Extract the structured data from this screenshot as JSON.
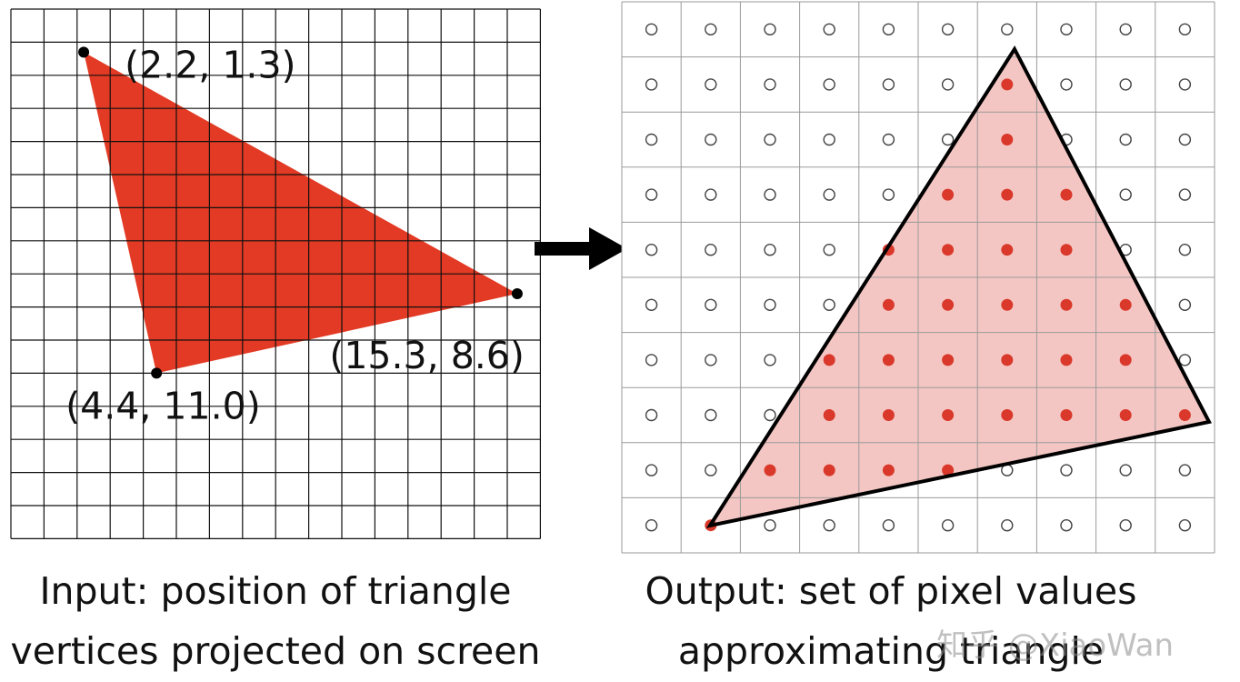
{
  "input_panel": {
    "grid_cols": 16,
    "grid_rows": 16,
    "triangle_color": "#e23a24",
    "vertices": [
      {
        "x": 2.2,
        "y": 1.3,
        "label": "(2.2, 1.3)"
      },
      {
        "x": 15.3,
        "y": 8.6,
        "label": "(15.3, 8.6)"
      },
      {
        "x": 4.4,
        "y": 11.0,
        "label": "(4.4, 11.0)"
      }
    ]
  },
  "arrow": {
    "direction": "right",
    "color": "#000000"
  },
  "output_panel": {
    "grid_cols": 10,
    "grid_rows": 10,
    "triangle_fill": "#f4c6c3",
    "filled_dot_color": "#d9382a",
    "empty_dot_color": "#444444",
    "filled_pixels": [
      [
        1,
        6
      ],
      [
        2,
        6
      ],
      [
        3,
        5
      ],
      [
        3,
        6
      ],
      [
        3,
        7
      ],
      [
        4,
        4
      ],
      [
        4,
        5
      ],
      [
        4,
        6
      ],
      [
        4,
        7
      ],
      [
        5,
        4
      ],
      [
        5,
        5
      ],
      [
        5,
        6
      ],
      [
        5,
        7
      ],
      [
        5,
        8
      ],
      [
        6,
        3
      ],
      [
        6,
        4
      ],
      [
        6,
        5
      ],
      [
        6,
        6
      ],
      [
        6,
        7
      ],
      [
        6,
        8
      ],
      [
        7,
        3
      ],
      [
        7,
        4
      ],
      [
        7,
        5
      ],
      [
        7,
        6
      ],
      [
        7,
        7
      ],
      [
        7,
        8
      ],
      [
        7,
        9
      ],
      [
        8,
        2
      ],
      [
        8,
        3
      ],
      [
        8,
        4
      ],
      [
        8,
        5
      ],
      [
        9,
        1
      ]
    ]
  },
  "captions": {
    "input_line1": "Input: position of triangle",
    "input_line2": "vertices projected on screen",
    "output_line1": "Output: set of pixel values",
    "output_line2": "approximating triangle"
  },
  "watermark": "知乎 @XiaoWan"
}
